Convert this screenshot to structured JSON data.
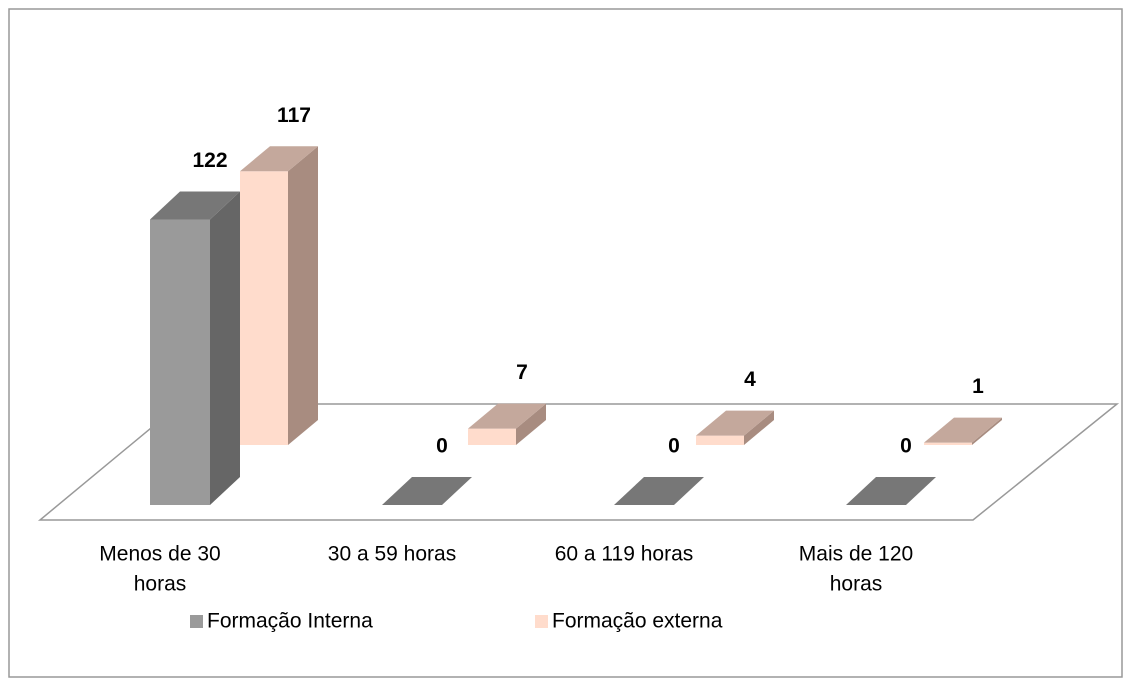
{
  "chart_data": {
    "type": "bar3d",
    "categories": [
      [
        "Menos de 30",
        "horas"
      ],
      [
        "30 a 59 horas"
      ],
      [
        "60 a 119 horas"
      ],
      [
        "Mais de 120",
        "horas"
      ]
    ],
    "series": [
      {
        "name": "Formação Interna",
        "color": "#9a9a9a",
        "values": [
          122,
          0,
          0,
          0
        ]
      },
      {
        "name": "Formação externa",
        "color": "#ffdccc",
        "values": [
          117,
          7,
          4,
          1
        ]
      }
    ]
  }
}
